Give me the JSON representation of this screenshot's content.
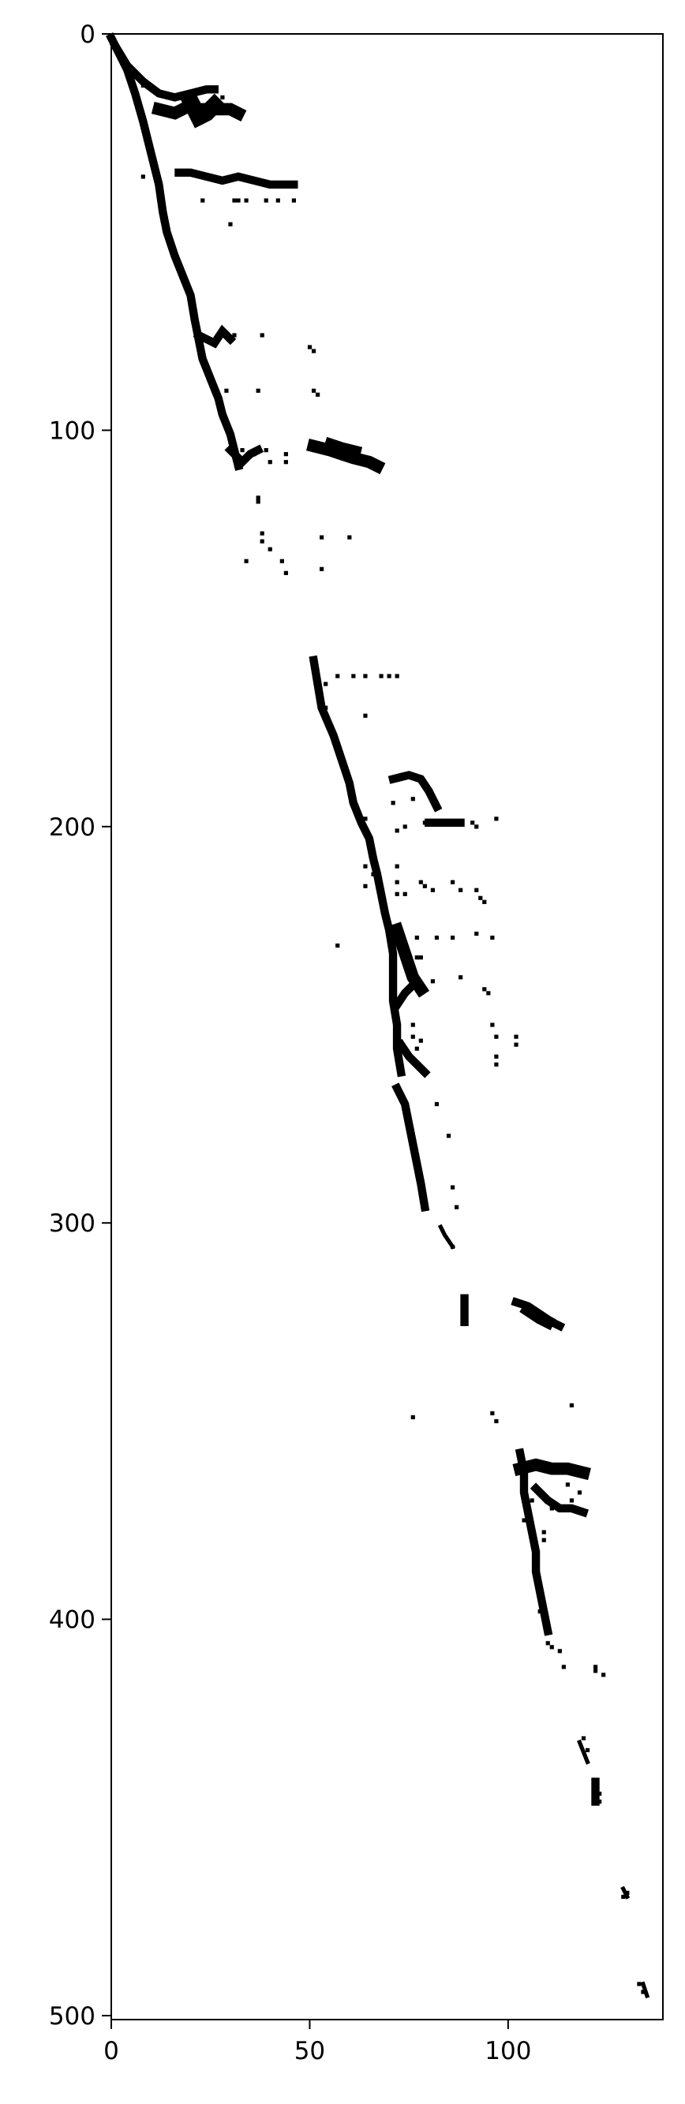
{
  "chart_data": {
    "type": "heatmap",
    "description_kind": "binary image (imshow, gray_r colormap)",
    "xlim": [
      0,
      139
    ],
    "ylim": [
      501,
      0
    ],
    "x_ticks": [
      0,
      50,
      100
    ],
    "y_ticks": [
      0,
      100,
      200,
      300,
      400,
      500
    ],
    "grid": false,
    "colors": {
      "on": "#000000",
      "off": "#ffffff",
      "frame": "#000000"
    },
    "strokes": [
      {
        "points": [
          [
            0,
            1
          ],
          [
            2,
            5
          ],
          [
            4,
            9
          ],
          [
            6,
            15
          ],
          [
            8,
            22
          ],
          [
            10,
            30
          ],
          [
            12,
            38
          ],
          [
            13,
            45
          ],
          [
            14,
            50
          ],
          [
            16,
            56
          ],
          [
            18,
            61
          ],
          [
            20,
            66
          ],
          [
            21,
            72
          ],
          [
            22,
            77
          ],
          [
            23,
            82
          ],
          [
            25,
            87
          ],
          [
            27,
            92
          ],
          [
            28,
            96
          ],
          [
            30,
            101
          ],
          [
            31,
            105
          ],
          [
            32,
            109
          ]
        ],
        "width": 2
      },
      {
        "points": [
          [
            1,
            3
          ],
          [
            4,
            8
          ],
          [
            8,
            12
          ],
          [
            12,
            15
          ],
          [
            16,
            16
          ],
          [
            20,
            15
          ],
          [
            24,
            14
          ],
          [
            26,
            14
          ]
        ],
        "width": 2
      },
      {
        "points": [
          [
            12,
            19
          ],
          [
            16,
            20
          ],
          [
            20,
            18
          ],
          [
            22,
            19
          ],
          [
            26,
            19
          ],
          [
            30,
            19
          ],
          [
            32,
            20
          ]
        ],
        "width": 3
      },
      {
        "points": [
          [
            20,
            17
          ],
          [
            22,
            21
          ],
          [
            24,
            20
          ],
          [
            26,
            18
          ]
        ],
        "width": 4
      },
      {
        "points": [
          [
            17,
            35
          ],
          [
            20,
            35
          ],
          [
            24,
            36
          ],
          [
            28,
            37
          ],
          [
            32,
            36
          ],
          [
            36,
            37
          ],
          [
            40,
            38
          ],
          [
            46,
            38
          ]
        ],
        "width": 2
      },
      {
        "points": [
          [
            22,
            76
          ],
          [
            24,
            77
          ],
          [
            26,
            78
          ],
          [
            28,
            75
          ],
          [
            30,
            77
          ]
        ],
        "width": 2
      },
      {
        "points": [
          [
            30,
            105
          ],
          [
            33,
            108
          ],
          [
            35,
            106
          ],
          [
            37,
            105
          ]
        ],
        "width": 2
      },
      {
        "points": [
          [
            51,
            104
          ],
          [
            55,
            105
          ],
          [
            58,
            106
          ],
          [
            61,
            107
          ],
          [
            65,
            108
          ],
          [
            67,
            109
          ]
        ],
        "width": 3
      },
      {
        "points": [
          [
            55,
            103
          ],
          [
            58,
            104
          ],
          [
            62,
            105
          ]
        ],
        "width": 2
      },
      {
        "points": [
          [
            51,
            158
          ],
          [
            52,
            164
          ],
          [
            53,
            170
          ],
          [
            56,
            177
          ],
          [
            58,
            183
          ],
          [
            60,
            189
          ],
          [
            61,
            194
          ],
          [
            63,
            199
          ],
          [
            65,
            203
          ],
          [
            66,
            208
          ],
          [
            67,
            212
          ],
          [
            68,
            217
          ],
          [
            69,
            222
          ],
          [
            70,
            226
          ],
          [
            71,
            232
          ],
          [
            71,
            238
          ],
          [
            71,
            244
          ],
          [
            72,
            250
          ],
          [
            72,
            256
          ],
          [
            73,
            262
          ]
        ],
        "width": 2
      },
      {
        "points": [
          [
            71,
            188
          ],
          [
            75,
            187
          ],
          [
            78,
            188
          ],
          [
            80,
            191
          ],
          [
            82,
            195
          ]
        ],
        "width": 2
      },
      {
        "points": [
          [
            80,
            199
          ],
          [
            84,
            199
          ],
          [
            88,
            199
          ]
        ],
        "width": 2
      },
      {
        "points": [
          [
            72,
            226
          ],
          [
            74,
            232
          ],
          [
            76,
            238
          ],
          [
            78,
            241
          ]
        ],
        "width": 3
      },
      {
        "points": [
          [
            72,
            245
          ],
          [
            74,
            242
          ],
          [
            76,
            240
          ]
        ],
        "width": 2
      },
      {
        "points": [
          [
            73,
            255
          ],
          [
            75,
            258
          ],
          [
            77,
            260
          ],
          [
            79,
            262
          ]
        ],
        "width": 2
      },
      {
        "points": [
          [
            72,
            266
          ],
          [
            74,
            270
          ],
          [
            75,
            275
          ],
          [
            76,
            280
          ],
          [
            77,
            285
          ],
          [
            78,
            290
          ],
          [
            79,
            296
          ]
        ],
        "width": 2
      },
      {
        "points": [
          [
            83,
            301
          ],
          [
            84,
            303
          ],
          [
            86,
            306
          ]
        ],
        "width": 1
      },
      {
        "points": [
          [
            89,
            319
          ],
          [
            89,
            325
          ]
        ],
        "width": 2
      },
      {
        "points": [
          [
            102,
            320
          ],
          [
            105,
            321
          ],
          [
            108,
            323
          ],
          [
            111,
            325
          ],
          [
            113,
            326
          ]
        ],
        "width": 2
      },
      {
        "points": [
          [
            105,
            322
          ],
          [
            108,
            324
          ],
          [
            110,
            325
          ]
        ],
        "width": 3
      },
      {
        "points": [
          [
            103,
            358
          ],
          [
            104,
            363
          ],
          [
            104,
            368
          ],
          [
            105,
            373
          ],
          [
            106,
            378
          ],
          [
            107,
            383
          ],
          [
            107,
            388
          ],
          [
            108,
            393
          ],
          [
            109,
            398
          ],
          [
            110,
            403
          ]
        ],
        "width": 2
      },
      {
        "points": [
          [
            103,
            362
          ],
          [
            107,
            361
          ],
          [
            111,
            362
          ],
          [
            115,
            362
          ],
          [
            119,
            363
          ]
        ],
        "width": 3
      },
      {
        "points": [
          [
            107,
            367
          ],
          [
            110,
            370
          ],
          [
            113,
            372
          ],
          [
            116,
            372
          ],
          [
            119,
            373
          ]
        ],
        "width": 2
      },
      {
        "points": [
          [
            118,
            431
          ],
          [
            120,
            436
          ]
        ],
        "width": 1
      },
      {
        "points": [
          [
            122,
            441
          ],
          [
            122,
            446
          ]
        ],
        "width": 2
      },
      {
        "points": [
          [
            129,
            468
          ],
          [
            130,
            470
          ]
        ],
        "width": 1
      },
      {
        "points": [
          [
            134,
            492
          ],
          [
            135,
            495
          ]
        ],
        "width": 1
      }
    ],
    "points": [
      [
        8,
        13
      ],
      [
        11,
        14
      ],
      [
        18,
        18
      ],
      [
        28,
        16
      ],
      [
        8,
        36
      ],
      [
        23,
        42
      ],
      [
        31,
        42
      ],
      [
        32,
        42
      ],
      [
        34,
        42
      ],
      [
        39,
        42
      ],
      [
        42,
        42
      ],
      [
        46,
        42
      ],
      [
        30,
        48
      ],
      [
        28,
        75
      ],
      [
        31,
        76
      ],
      [
        38,
        76
      ],
      [
        50,
        79
      ],
      [
        51,
        80
      ],
      [
        29,
        90
      ],
      [
        37,
        90
      ],
      [
        51,
        90
      ],
      [
        52,
        91
      ],
      [
        33,
        105
      ],
      [
        36,
        106
      ],
      [
        39,
        105
      ],
      [
        40,
        108
      ],
      [
        44,
        106
      ],
      [
        44,
        108
      ],
      [
        37,
        117
      ],
      [
        37,
        118
      ],
      [
        38,
        126
      ],
      [
        38,
        128
      ],
      [
        40,
        130
      ],
      [
        34,
        133
      ],
      [
        43,
        133
      ],
      [
        44,
        136
      ],
      [
        53,
        127
      ],
      [
        60,
        127
      ],
      [
        53,
        135
      ],
      [
        54,
        164
      ],
      [
        57,
        162
      ],
      [
        61,
        162
      ],
      [
        64,
        162
      ],
      [
        68,
        162
      ],
      [
        70,
        162
      ],
      [
        72,
        162
      ],
      [
        53,
        168
      ],
      [
        54,
        170
      ],
      [
        64,
        172
      ],
      [
        64,
        198
      ],
      [
        71,
        194
      ],
      [
        76,
        193
      ],
      [
        74,
        200
      ],
      [
        72,
        201
      ],
      [
        79,
        199
      ],
      [
        91,
        199
      ],
      [
        92,
        200
      ],
      [
        97,
        198
      ],
      [
        64,
        210
      ],
      [
        64,
        215
      ],
      [
        66,
        212
      ],
      [
        72,
        210
      ],
      [
        72,
        214
      ],
      [
        72,
        217
      ],
      [
        74,
        217
      ],
      [
        78,
        214
      ],
      [
        79,
        215
      ],
      [
        81,
        216
      ],
      [
        86,
        214
      ],
      [
        88,
        216
      ],
      [
        92,
        216
      ],
      [
        93,
        218
      ],
      [
        94,
        219
      ],
      [
        73,
        228
      ],
      [
        77,
        228
      ],
      [
        77,
        233
      ],
      [
        78,
        233
      ],
      [
        82,
        228
      ],
      [
        86,
        228
      ],
      [
        92,
        227
      ],
      [
        96,
        228
      ],
      [
        57,
        230
      ],
      [
        81,
        239
      ],
      [
        88,
        238
      ],
      [
        94,
        241
      ],
      [
        95,
        242
      ],
      [
        76,
        250
      ],
      [
        76,
        253
      ],
      [
        78,
        254
      ],
      [
        77,
        256
      ],
      [
        96,
        250
      ],
      [
        97,
        253
      ],
      [
        97,
        258
      ],
      [
        97,
        260
      ],
      [
        102,
        253
      ],
      [
        102,
        255
      ],
      [
        82,
        270
      ],
      [
        85,
        278
      ],
      [
        86,
        291
      ],
      [
        87,
        296
      ],
      [
        86,
        306
      ],
      [
        76,
        349
      ],
      [
        96,
        348
      ],
      [
        97,
        350
      ],
      [
        116,
        346
      ],
      [
        104,
        370
      ],
      [
        104,
        375
      ],
      [
        106,
        370
      ],
      [
        109,
        369
      ],
      [
        111,
        372
      ],
      [
        115,
        366
      ],
      [
        116,
        370
      ],
      [
        118,
        368
      ],
      [
        119,
        373
      ],
      [
        109,
        378
      ],
      [
        109,
        380
      ],
      [
        108,
        398
      ],
      [
        110,
        406
      ],
      [
        111,
        407
      ],
      [
        113,
        408
      ],
      [
        114,
        412
      ],
      [
        122,
        412
      ],
      [
        122,
        413
      ],
      [
        124,
        414
      ],
      [
        119,
        430
      ],
      [
        120,
        433
      ],
      [
        123,
        444
      ],
      [
        123,
        446
      ],
      [
        129,
        470
      ],
      [
        130,
        469
      ],
      [
        133,
        492
      ],
      [
        134,
        494
      ]
    ]
  }
}
